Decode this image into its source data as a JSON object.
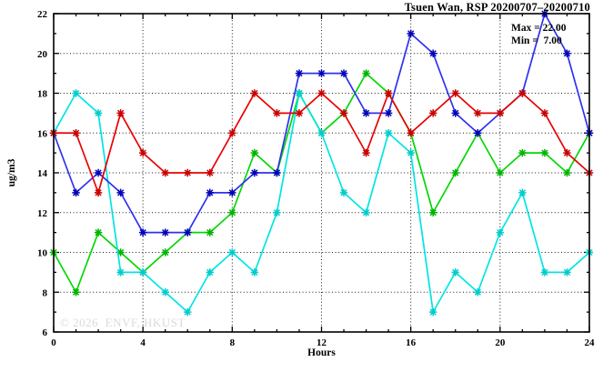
{
  "title": "Tsuen Wan, RSP 20200707–20200710",
  "annotation": {
    "max_label": "Max = 22.00",
    "min_label": "Min =  7.00"
  },
  "watermark": "© 2026  ENVF, HKUST",
  "axes": {
    "xlabel": "Hours",
    "ylabel": "ug/m3"
  },
  "chart_data": {
    "type": "line",
    "title": "Tsuen Wan, RSP 20200707–20200710",
    "xlabel": "Hours",
    "ylabel": "ug/m3",
    "xlim": [
      0,
      24
    ],
    "ylim": [
      6,
      22
    ],
    "xticks": [
      0,
      4,
      8,
      12,
      16,
      20,
      24
    ],
    "yticks": [
      6,
      8,
      10,
      12,
      14,
      16,
      18,
      20,
      22
    ],
    "grid": "dotted black at interior major ticks",
    "legend": "none",
    "stats": {
      "max": 22.0,
      "min": 7.0
    },
    "x": [
      0,
      1,
      2,
      3,
      4,
      5,
      6,
      7,
      8,
      9,
      10,
      11,
      12,
      13,
      14,
      15,
      16,
      17,
      18,
      19,
      20,
      21,
      22,
      23,
      24
    ],
    "series": [
      {
        "name": "green",
        "line_color": "#00d800",
        "marker_color": "#00b400",
        "values": [
          10,
          8,
          11,
          10,
          9,
          10,
          11,
          11,
          12,
          15,
          14,
          18,
          16,
          17,
          19,
          18,
          16,
          12,
          14,
          16,
          14,
          15,
          15,
          14,
          16
        ]
      },
      {
        "name": "cyan",
        "line_color": "#00e4e4",
        "marker_color": "#00cccc",
        "values": [
          16,
          18,
          17,
          9,
          9,
          8,
          7,
          9,
          10,
          9,
          12,
          18,
          16,
          13,
          12,
          16,
          15,
          7,
          9,
          8,
          11,
          13,
          9,
          9,
          10
        ]
      },
      {
        "name": "blue",
        "line_color": "#3030f0",
        "marker_color": "#0000b8",
        "values": [
          16,
          13,
          14,
          13,
          11,
          11,
          11,
          13,
          13,
          14,
          14,
          19,
          19,
          19,
          17,
          17,
          21,
          20,
          17,
          16,
          17,
          18,
          22,
          20,
          16
        ]
      },
      {
        "name": "red",
        "line_color": "#e80000",
        "marker_color": "#c80000",
        "values": [
          16,
          16,
          13,
          17,
          15,
          14,
          14,
          14,
          16,
          18,
          17,
          17,
          18,
          17,
          15,
          18,
          16,
          17,
          18,
          17,
          17,
          18,
          17,
          15,
          14
        ]
      }
    ]
  }
}
